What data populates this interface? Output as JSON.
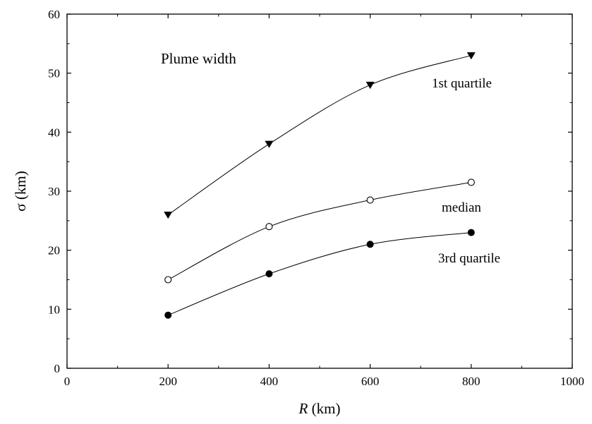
{
  "chart_data": {
    "type": "line",
    "title": "",
    "annotations": {
      "plot_label": "Plume width"
    },
    "xlabel": {
      "italic": "R",
      "rest": " (km)"
    },
    "ylabel": "σ (km)",
    "xlim": [
      0,
      1000
    ],
    "ylim": [
      0,
      60
    ],
    "xticks": [
      0,
      200,
      400,
      600,
      800,
      1000
    ],
    "yticks": [
      0,
      10,
      20,
      30,
      40,
      50,
      60
    ],
    "grid": false,
    "legend": "none",
    "series": [
      {
        "name": "1st quartile",
        "marker": "triangle-down-filled",
        "x": [
          200,
          400,
          600,
          800
        ],
        "y": [
          26,
          38,
          48,
          53
        ]
      },
      {
        "name": "median",
        "marker": "circle-open",
        "x": [
          200,
          400,
          600,
          800
        ],
        "y": [
          15,
          24,
          28.5,
          31.5
        ]
      },
      {
        "name": "3rd quartile",
        "marker": "circle-filled",
        "x": [
          200,
          400,
          600,
          800
        ],
        "y": [
          9,
          16,
          21,
          23
        ]
      }
    ]
  }
}
